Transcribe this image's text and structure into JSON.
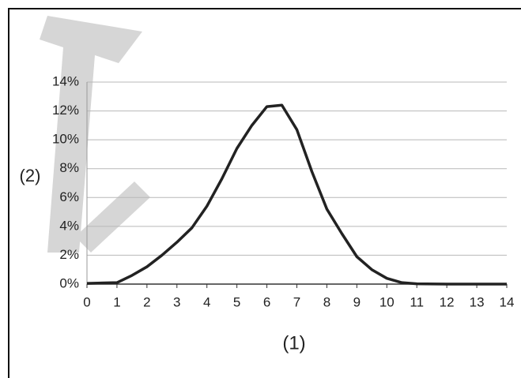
{
  "chart_data": {
    "type": "line",
    "x_label": "(1)",
    "y_label": "(2)",
    "x": [
      0,
      1,
      1.5,
      2,
      2.5,
      3,
      3.5,
      4,
      4.5,
      5,
      5.5,
      6,
      6.5,
      7,
      7.5,
      8,
      8.5,
      9,
      9.5,
      10,
      10.5,
      11,
      12,
      13,
      14
    ],
    "series": [
      {
        "color": "#222222",
        "values": [
          0.05,
          0.1,
          0.6,
          1.2,
          2.0,
          2.9,
          3.9,
          5.4,
          7.3,
          9.4,
          11.0,
          12.3,
          12.4,
          10.7,
          7.8,
          5.2,
          3.5,
          1.9,
          1.0,
          0.4,
          0.1,
          0.02,
          0,
          0,
          0
        ]
      }
    ],
    "xlim": [
      0,
      14
    ],
    "xticks": [
      0,
      1,
      2,
      3,
      4,
      5,
      6,
      7,
      8,
      9,
      10,
      11,
      12,
      13,
      14
    ],
    "ylim": [
      0,
      14
    ],
    "yticks": [
      {
        "value": 0,
        "label": "0%"
      },
      {
        "value": 2,
        "label": "2%"
      },
      {
        "value": 4,
        "label": "4%"
      },
      {
        "value": 6,
        "label": "6%"
      },
      {
        "value": 8,
        "label": "8%"
      },
      {
        "value": 10,
        "label": "10%"
      },
      {
        "value": 12,
        "label": "12%"
      },
      {
        "value": 14,
        "label": "14%"
      }
    ],
    "grid": true
  }
}
